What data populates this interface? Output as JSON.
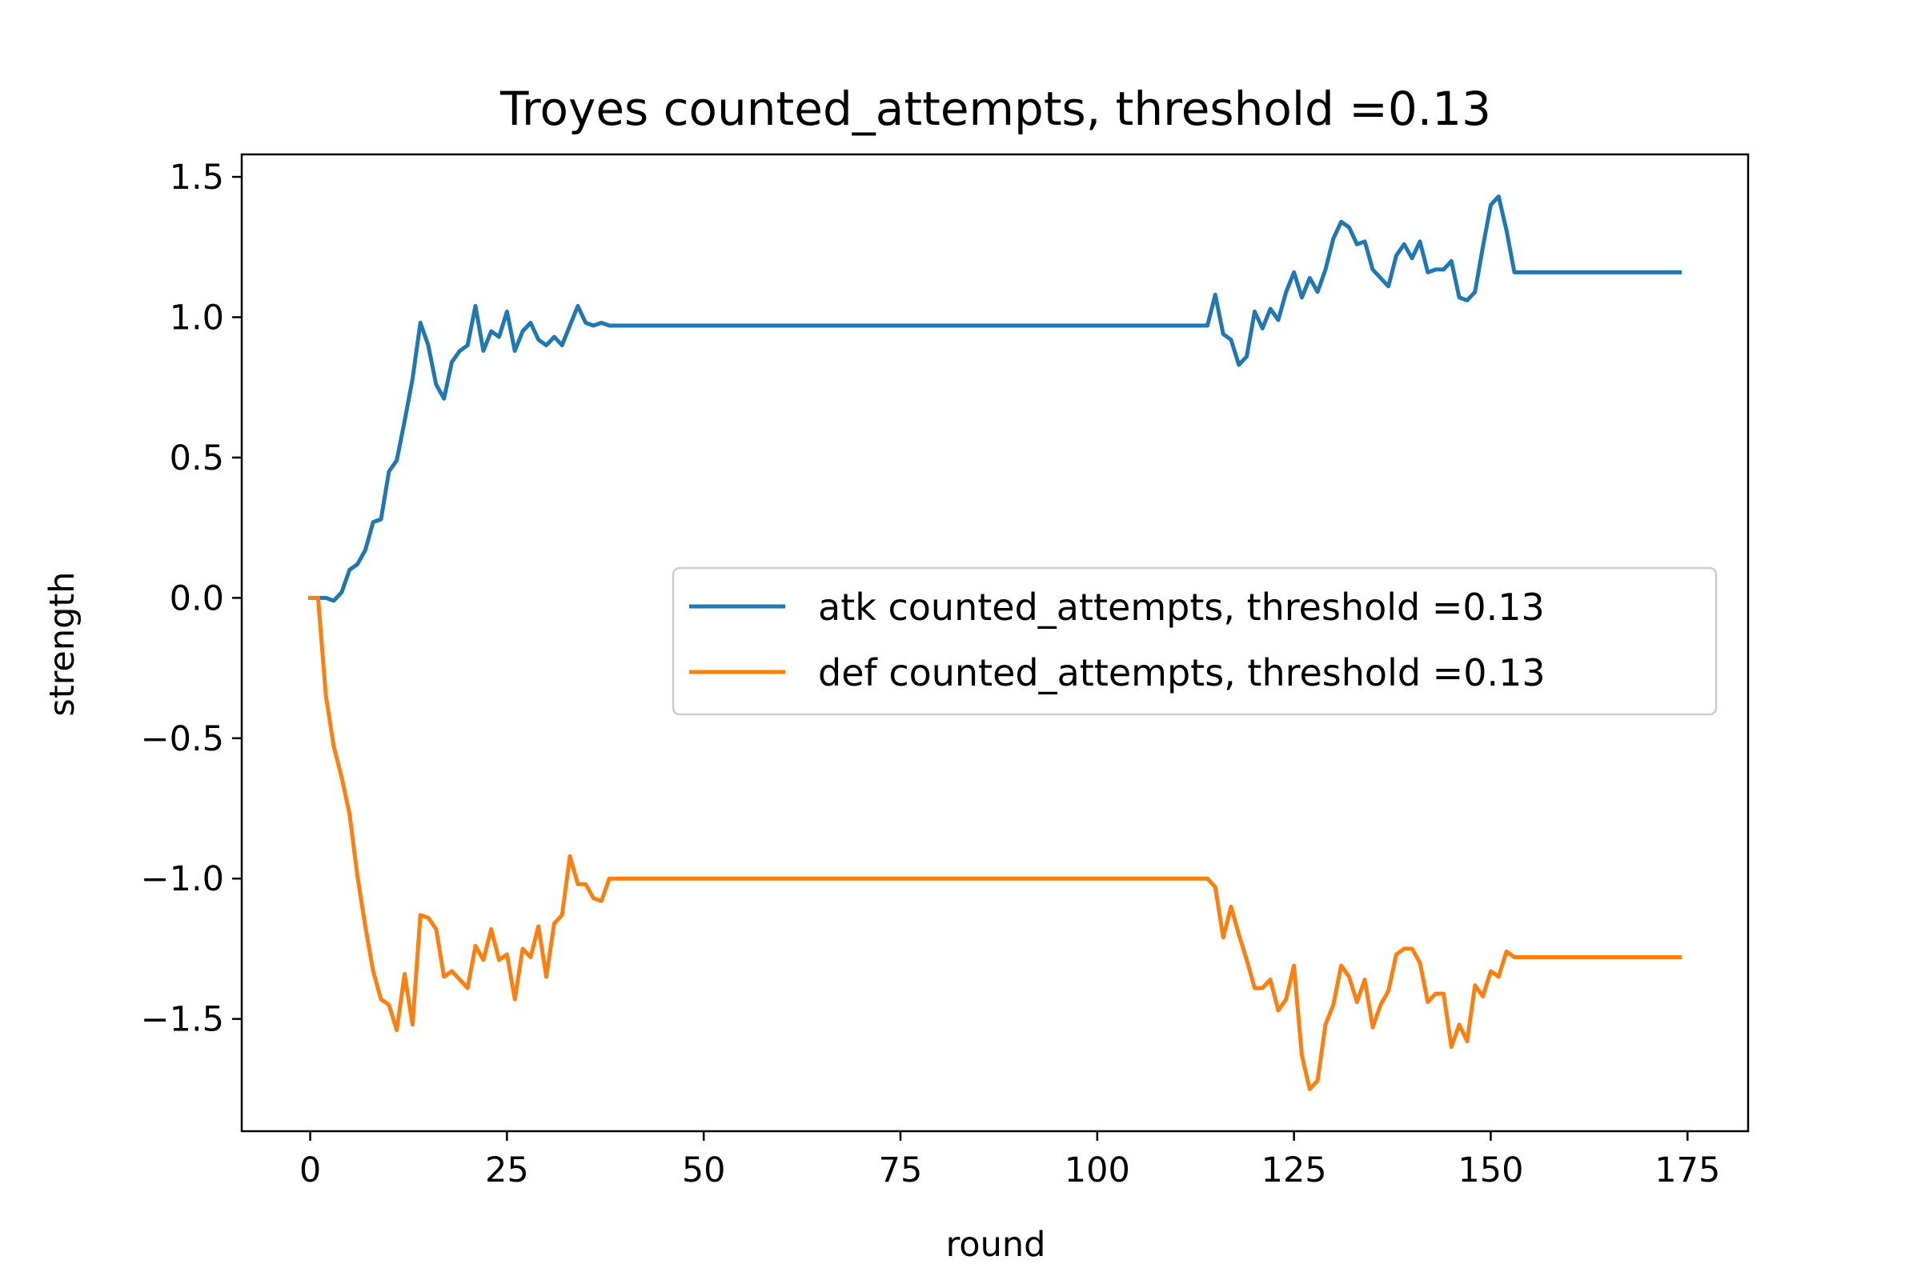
{
  "chart_data": {
    "type": "line",
    "title": "Troyes counted_attempts, threshold =0.13",
    "xlabel": "round",
    "ylabel": "strength",
    "xlim": [
      -8.7,
      182.7
    ],
    "ylim": [
      -1.9,
      1.58
    ],
    "xticks": [
      0,
      25,
      50,
      75,
      100,
      125,
      150,
      175
    ],
    "xtick_labels": [
      "0",
      "25",
      "50",
      "75",
      "100",
      "125",
      "150",
      "175"
    ],
    "yticks": [
      1.5,
      1.0,
      0.5,
      0.0,
      -0.5,
      -1.0,
      -1.5
    ],
    "ytick_labels": [
      "1.5",
      "1.0",
      "0.5",
      "0.0",
      "−0.5",
      "−1.0",
      "−1.5"
    ],
    "grid": false,
    "legend_position": "center-right",
    "series": [
      {
        "name": "atk counted_attempts, threshold =0.13",
        "color": "#1f77b4",
        "x": [
          0,
          1,
          2,
          3,
          4,
          5,
          6,
          7,
          8,
          9,
          10,
          11,
          12,
          13,
          14,
          15,
          16,
          17,
          18,
          19,
          20,
          21,
          22,
          23,
          24,
          25,
          26,
          27,
          28,
          29,
          30,
          31,
          32,
          33,
          34,
          35,
          36,
          37,
          38,
          39,
          40,
          50,
          60,
          70,
          80,
          90,
          100,
          110,
          114,
          115,
          116,
          117,
          118,
          119,
          120,
          121,
          122,
          123,
          124,
          125,
          126,
          127,
          128,
          129,
          130,
          131,
          132,
          133,
          134,
          135,
          136,
          137,
          138,
          139,
          140,
          141,
          142,
          143,
          144,
          145,
          146,
          147,
          148,
          149,
          150,
          151,
          152,
          153,
          155,
          160,
          165,
          170,
          174
        ],
        "y": [
          0,
          0,
          0,
          -0.01,
          0.02,
          0.1,
          0.12,
          0.17,
          0.27,
          0.28,
          0.45,
          0.49,
          0.63,
          0.78,
          0.98,
          0.9,
          0.76,
          0.71,
          0.84,
          0.88,
          0.9,
          1.04,
          0.88,
          0.95,
          0.93,
          1.02,
          0.88,
          0.95,
          0.98,
          0.92,
          0.9,
          0.93,
          0.9,
          0.97,
          1.04,
          0.98,
          0.97,
          0.98,
          0.97,
          0.97,
          0.97,
          0.97,
          0.97,
          0.97,
          0.97,
          0.97,
          0.97,
          0.97,
          0.97,
          1.08,
          0.94,
          0.92,
          0.83,
          0.86,
          1.02,
          0.96,
          1.03,
          0.99,
          1.09,
          1.16,
          1.07,
          1.14,
          1.09,
          1.17,
          1.28,
          1.34,
          1.32,
          1.26,
          1.27,
          1.17,
          1.14,
          1.11,
          1.22,
          1.26,
          1.21,
          1.27,
          1.16,
          1.17,
          1.17,
          1.2,
          1.07,
          1.06,
          1.09,
          1.25,
          1.4,
          1.43,
          1.31,
          1.16,
          1.16,
          1.16,
          1.16,
          1.16,
          1.16
        ]
      },
      {
        "name": "def counted_attempts, threshold =0.13",
        "color": "#ff7f0e",
        "x": [
          0,
          1,
          2,
          3,
          4,
          5,
          6,
          7,
          8,
          9,
          10,
          11,
          12,
          13,
          14,
          15,
          16,
          17,
          18,
          19,
          20,
          21,
          22,
          23,
          24,
          25,
          26,
          27,
          28,
          29,
          30,
          31,
          32,
          33,
          34,
          35,
          36,
          37,
          38,
          39,
          40,
          50,
          60,
          70,
          80,
          90,
          100,
          110,
          114,
          115,
          116,
          117,
          118,
          119,
          120,
          121,
          122,
          123,
          124,
          125,
          126,
          127,
          128,
          129,
          130,
          131,
          132,
          133,
          134,
          135,
          136,
          137,
          138,
          139,
          140,
          141,
          142,
          143,
          144,
          145,
          146,
          147,
          148,
          149,
          150,
          151,
          152,
          153,
          155,
          160,
          165,
          170,
          174
        ],
        "y": [
          0,
          0,
          -0.35,
          -0.53,
          -0.64,
          -0.77,
          -0.99,
          -1.17,
          -1.33,
          -1.43,
          -1.45,
          -1.54,
          -1.34,
          -1.52,
          -1.13,
          -1.14,
          -1.18,
          -1.35,
          -1.33,
          -1.36,
          -1.39,
          -1.24,
          -1.29,
          -1.18,
          -1.29,
          -1.27,
          -1.43,
          -1.25,
          -1.28,
          -1.17,
          -1.35,
          -1.16,
          -1.13,
          -0.92,
          -1.02,
          -1.02,
          -1.07,
          -1.08,
          -1.0,
          -1.0,
          -1.0,
          -1.0,
          -1.0,
          -1.0,
          -1.0,
          -1.0,
          -1.0,
          -1.0,
          -1.0,
          -1.03,
          -1.21,
          -1.1,
          -1.2,
          -1.29,
          -1.39,
          -1.39,
          -1.36,
          -1.47,
          -1.43,
          -1.31,
          -1.63,
          -1.75,
          -1.72,
          -1.52,
          -1.45,
          -1.31,
          -1.35,
          -1.44,
          -1.36,
          -1.53,
          -1.45,
          -1.4,
          -1.27,
          -1.25,
          -1.25,
          -1.3,
          -1.44,
          -1.41,
          -1.41,
          -1.6,
          -1.52,
          -1.58,
          -1.38,
          -1.42,
          -1.33,
          -1.35,
          -1.26,
          -1.28,
          -1.28,
          -1.28,
          -1.28,
          -1.28,
          -1.28
        ]
      }
    ]
  }
}
